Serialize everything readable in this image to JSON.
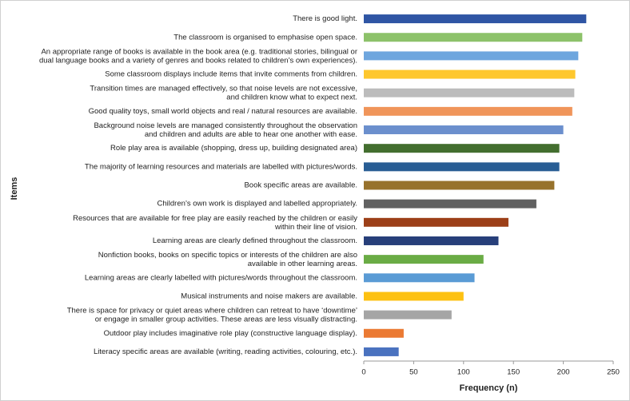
{
  "chart_data": {
    "type": "hbar",
    "y_label": "Items",
    "x_label": "Frequency (n)",
    "categories": [
      "There is good light.",
      "The classroom is organised to emphasise open space.",
      "An appropriate range of books is available in the book area (e.g. traditional stories, bilingual or\ndual language books and a variety of genres and books related to children’s own experiences).",
      "Some classroom displays include items that invite comments from children.",
      "Transition times are managed effectively, so that noise levels are not excessive,\nand children know what to expect next.",
      "Good quality toys, small world objects and real / natural resources are available.",
      "Background noise levels are managed consistently throughout the observation\nand children and adults are able to hear one another with ease.",
      "Role play area is available (shopping, dress up, building designated area)",
      "The majority of learning resources and materials are labelled with pictures/words.",
      "Book specific areas are available.",
      "Children’s own work is displayed and labelled appropriately.",
      "Resources that are available for free play are easily reached by the children or easily\nwithin their line of vision.",
      "Learning areas are clearly defined throughout the classroom.",
      "Nonfiction books, books on specific topics or interests of the children are also\navailable in other learning areas.",
      "Learning areas are clearly labelled with pictures/words throughout the classroom.",
      "Musical instruments and noise makers are available.",
      "There is space for privacy or quiet areas where children can retreat to have ‘downtime’\nor engage in smaller group activities. These areas are less visually distracting.",
      "Outdoor play includes imaginative role play (constructive language display).",
      "Literacy specific areas are available (writing, reading activities, colouring, etc.)."
    ],
    "values": [
      223,
      219,
      215,
      212,
      211,
      209,
      200,
      196,
      196,
      191,
      173,
      145,
      135,
      120,
      111,
      100,
      88,
      40,
      35
    ],
    "colors": [
      "#2f55a4",
      "#8dc26a",
      "#6ea6de",
      "#fec72d",
      "#bcbcbc",
      "#f0955a",
      "#6b8fcd",
      "#436e2f",
      "#285d94",
      "#97722c",
      "#616161",
      "#9c3f18",
      "#273f7a",
      "#6aac45",
      "#5a9bd5",
      "#fdc112",
      "#a5a5a5",
      "#eb7a33",
      "#4a72bf"
    ],
    "xlim": [
      0,
      250
    ],
    "xticks": [
      0,
      50,
      100,
      150,
      200,
      250
    ]
  }
}
